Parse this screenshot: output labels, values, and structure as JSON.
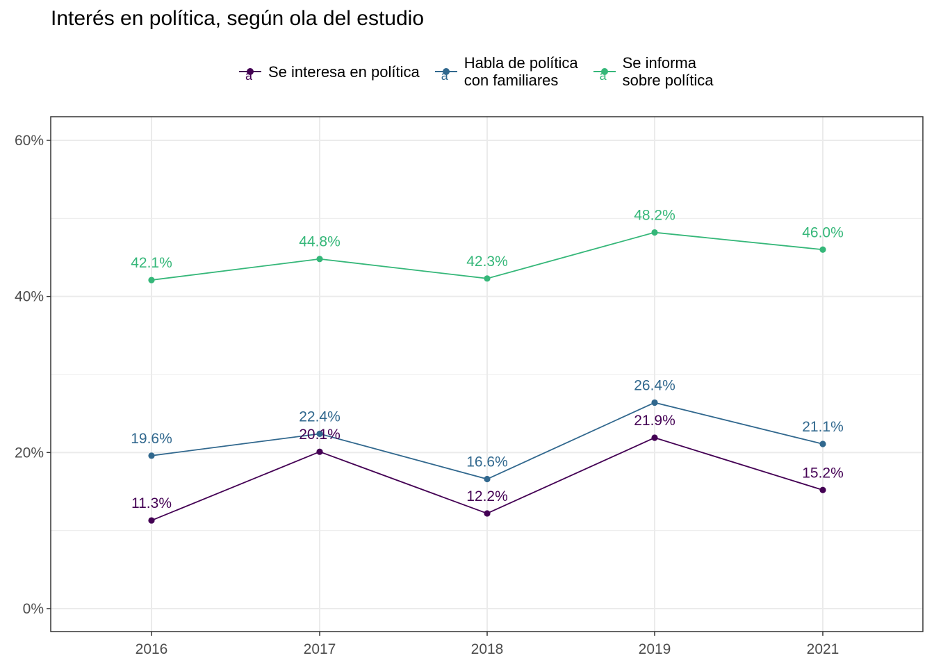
{
  "chart_data": {
    "type": "line",
    "title": "Interés en política, según ola del estudio",
    "xlabel": "",
    "ylabel": "",
    "categories": [
      "2016",
      "2017",
      "2018",
      "2019",
      "2021"
    ],
    "ylim": [
      -3,
      63
    ],
    "yticks": [
      0,
      20,
      40,
      60
    ],
    "ytick_labels": [
      "0%",
      "20%",
      "40%",
      "60%"
    ],
    "grid": true,
    "legend_position": "top",
    "series": [
      {
        "name": "Se interesa en política",
        "color": "#440154",
        "values": [
          11.3,
          20.1,
          12.2,
          21.9,
          15.2
        ],
        "labels": [
          "11.3%",
          "20.1%",
          "12.2%",
          "21.9%",
          "15.2%"
        ]
      },
      {
        "name": "Habla de política\ncon familiares",
        "color": "#31688E",
        "values": [
          19.6,
          22.4,
          16.6,
          26.4,
          21.1
        ],
        "labels": [
          "19.6%",
          "22.4%",
          "16.6%",
          "26.4%",
          "21.1%"
        ]
      },
      {
        "name": "Se informa\nsobre política",
        "color": "#35B779",
        "values": [
          42.1,
          44.8,
          42.3,
          48.2,
          46.0
        ],
        "labels": [
          "42.1%",
          "44.8%",
          "42.3%",
          "48.2%",
          "46.0%"
        ]
      }
    ]
  },
  "legend_glyph": "a"
}
